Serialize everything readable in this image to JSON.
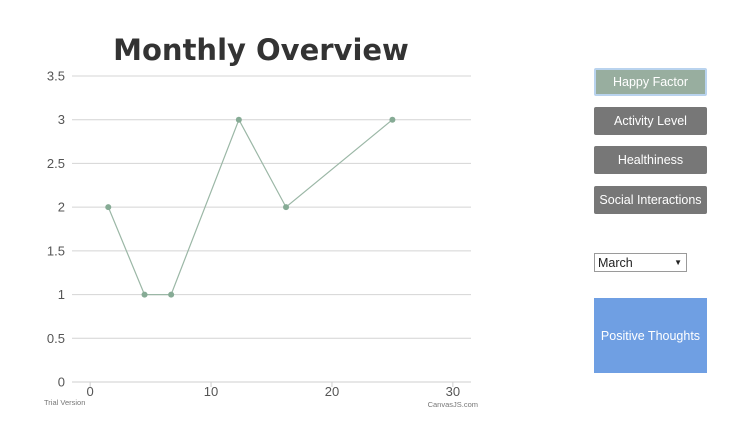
{
  "chart_data": {
    "type": "line",
    "title": "Monthly Overview",
    "xlabel": "",
    "ylabel": "",
    "xlim": [
      -1.5,
      31.5
    ],
    "ylim": [
      0,
      3.5
    ],
    "x_ticks": [
      0,
      10,
      20,
      30
    ],
    "y_ticks": [
      0,
      0.5,
      1,
      1.5,
      2,
      2.5,
      3,
      3.5
    ],
    "grid": "horizontal",
    "series": [
      {
        "color": "#9bb7a6",
        "x": [
          1.5,
          4.5,
          6.7,
          12.3,
          16.2,
          25
        ],
        "y": [
          2,
          1,
          1,
          3,
          2,
          3
        ]
      }
    ]
  },
  "watermark": {
    "left": "Trial Version",
    "right": "CanvasJS.com"
  },
  "controls": {
    "buttons": [
      {
        "label": "Happy Factor",
        "active": true
      },
      {
        "label": "Activity Level",
        "active": false
      },
      {
        "label": "Healthiness",
        "active": false
      },
      {
        "label": "Social Interactions",
        "active": false
      }
    ],
    "month_select": {
      "value": "March",
      "arrow_icon": "triangle-down-icon"
    },
    "thoughts_box": {
      "label": "Positive Thoughts",
      "color": "#6f9fe3"
    }
  }
}
